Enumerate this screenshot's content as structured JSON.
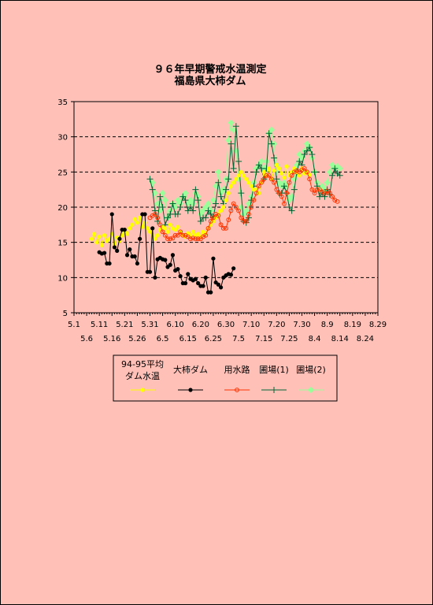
{
  "colors": {
    "background": "#ffc0b8",
    "avg": "#ffff00",
    "dam": "#000000",
    "canal": "#ff3300",
    "field1": "#006633",
    "field2": "#99ff99"
  },
  "chart_data": {
    "type": "line",
    "title_lines": [
      "９６年早期警戒水温測定",
      "福島県大柿ダム"
    ],
    "xlabel": "",
    "ylabel": "",
    "ylim": [
      5,
      35
    ],
    "yticks": [
      5,
      10,
      15,
      20,
      25,
      30,
      35
    ],
    "grid": "horizontal dashed at 10, 15, 20, 25, 30",
    "x_tick_labels_top": [
      "5.1",
      "5.11",
      "5.21",
      "5.31",
      "6.10",
      "6.20",
      "6.30",
      "7.10",
      "7.20",
      "7.30",
      "8.9",
      "8.19",
      "8.29"
    ],
    "x_tick_labels_bottom": [
      "5.6",
      "5.16",
      "5.26",
      "6.5",
      "6.15",
      "6.25",
      "7.5",
      "7.15",
      "7.25",
      "8.4",
      "8.14",
      "8.24"
    ],
    "x_range_days": [
      0,
      120
    ],
    "legend_placement": "bottom",
    "series": [
      {
        "name": "94-95平均 ダム水温",
        "legend_lines": [
          "94-95平均",
          "ダム水温"
        ],
        "color_key": "avg",
        "marker": "dot",
        "start_day": 7,
        "values": [
          15.5,
          16.2,
          15.0,
          15.8,
          14.6,
          16.0,
          15.2,
          15.5,
          16.2,
          14.8,
          15.7,
          15.2,
          16.0,
          16.5,
          16.2,
          17.0,
          17.5,
          18.3,
          17.8,
          18.5,
          17.2,
          17.8,
          17.0,
          16.5,
          16.0,
          15.5,
          16.0,
          16.8,
          17.2,
          17.0,
          16.5,
          17.5,
          17.0,
          16.8,
          17.2,
          16.5,
          16.0,
          15.8,
          16.3,
          16.0,
          16.5,
          16.0,
          16.2,
          15.8,
          16.5,
          16.3,
          17.0,
          17.5,
          18.0,
          18.5,
          19.0,
          19.5,
          20.0,
          21.0,
          22.0,
          23.0,
          23.5,
          24.0,
          24.5,
          25.0,
          24.5,
          24.0,
          23.5,
          23.0,
          22.5,
          22.5,
          22.0,
          23.5,
          25.0,
          24.5,
          25.5,
          24.0,
          25.2,
          26.0,
          25.5,
          24.8,
          24.2,
          25.8,
          24.5,
          25.0,
          25.5,
          25.0,
          24.5,
          25.5,
          24.8,
          25.0,
          24.6
        ]
      },
      {
        "name": "大柿ダム",
        "legend_lines": [
          "大柿ダム"
        ],
        "color_key": "dam",
        "marker": "dot",
        "start_day": 10,
        "values": [
          13.6,
          13.4,
          13.5,
          12.0,
          12.0,
          19.0,
          14.3,
          13.8,
          15.5,
          16.8,
          16.8,
          13.2,
          14.0,
          13.0,
          13.0,
          12.0,
          15.5,
          19.0,
          19.0,
          10.8,
          10.8,
          17.0,
          10.0,
          12.6,
          12.8,
          12.6,
          12.5,
          11.5,
          11.8,
          13.2,
          11.0,
          11.2,
          10.2,
          9.2,
          9.2,
          10.5,
          9.8,
          9.6,
          9.8,
          9.2,
          8.8,
          8.8,
          10.0,
          7.9,
          7.9,
          12.7,
          9.3,
          9.0,
          8.6,
          10.0,
          10.3,
          10.5,
          10.4,
          11.3
        ]
      },
      {
        "name": "用水路",
        "legend_lines": [
          "用水路"
        ],
        "color_key": "canal",
        "marker": "circle",
        "start_day": 30,
        "values": [
          18.5,
          18.8,
          19.0,
          18.5,
          17.5,
          16.5,
          16.0,
          15.5,
          15.5,
          15.6,
          16.0,
          16.0,
          16.5,
          16.0,
          16.0,
          15.8,
          15.5,
          15.6,
          15.5,
          15.5,
          15.5,
          15.8,
          16.0,
          17.0,
          18.0,
          18.5,
          19.0,
          18.8,
          17.5,
          17.0,
          17.0,
          18.2,
          19.5,
          20.5,
          20.0,
          19.5,
          18.5,
          18.0,
          18.0,
          19.0,
          20.0,
          21.0,
          22.0,
          23.0,
          23.5,
          24.0,
          24.5,
          24.5,
          24.0,
          23.5,
          22.5,
          22.0,
          21.5,
          20.5,
          22.0,
          23.5,
          24.5,
          25.0,
          25.2,
          25.0,
          25.3,
          25.5,
          25.0,
          24.0,
          22.5,
          22.0,
          22.5,
          22.5,
          22.2,
          22.0,
          22.3,
          22.0,
          21.5,
          21.0,
          20.8
        ]
      },
      {
        "name": "圃場(1)",
        "legend_lines": [
          "圃場(1)"
        ],
        "color_key": "field1",
        "marker": "plus",
        "start_day": 30,
        "values": [
          24.0,
          22.5,
          19.5,
          18.0,
          21.5,
          20.0,
          17.5,
          18.5,
          19.0,
          20.5,
          19.0,
          19.0,
          20.0,
          21.5,
          21.0,
          19.5,
          20.0,
          19.5,
          22.5,
          21.0,
          18.0,
          18.5,
          18.5,
          19.5,
          19.0,
          18.5,
          20.5,
          23.5,
          21.5,
          20.5,
          22.5,
          24.0,
          29.0,
          25.5,
          31.5,
          26.5,
          22.0,
          18.0,
          17.8,
          18.5,
          21.0,
          23.0,
          25.0,
          26.0,
          25.5,
          24.0,
          25.5,
          30.5,
          29.0,
          27.0,
          24.0,
          22.0,
          22.0,
          23.0,
          22.0,
          20.0,
          19.5,
          22.5,
          25.0,
          26.5,
          26.0,
          27.5,
          28.0,
          28.5,
          27.5,
          25.0,
          23.0,
          21.5,
          22.0,
          21.5,
          22.5,
          21.8,
          24.5,
          25.5,
          24.8,
          24.5
        ]
      },
      {
        "name": "圃場(2)",
        "legend_lines": [
          "圃場(2)"
        ],
        "color_key": "field2",
        "marker": "diamond",
        "start_day": 31,
        "values": [
          23.5,
          22.0,
          20.5,
          19.5,
          22.0,
          21.0,
          18.5,
          19.5,
          20.5,
          20.0,
          21.0,
          20.5,
          21.5,
          22.0,
          20.5,
          21.0,
          20.5,
          22.0,
          21.5,
          19.0,
          19.5,
          20.0,
          20.5,
          19.5,
          21.0,
          23.0,
          25.0,
          22.0,
          22.5,
          24.0,
          29.5,
          32.0,
          31.0,
          28.0,
          24.0,
          20.0,
          19.0,
          19.5,
          20.5,
          21.5,
          23.5,
          25.5,
          26.0,
          26.5,
          25.5,
          26.5,
          30.5,
          31.0,
          29.0,
          26.0,
          23.5,
          23.0,
          23.5,
          23.0,
          21.0,
          21.5,
          24.0,
          26.0,
          27.5,
          27.0,
          28.0,
          29.0,
          28.5,
          27.0,
          25.0,
          23.5,
          22.5,
          23.0,
          22.5,
          23.5,
          25.0,
          26.0,
          25.5,
          25.8,
          25.5
        ]
      }
    ]
  }
}
